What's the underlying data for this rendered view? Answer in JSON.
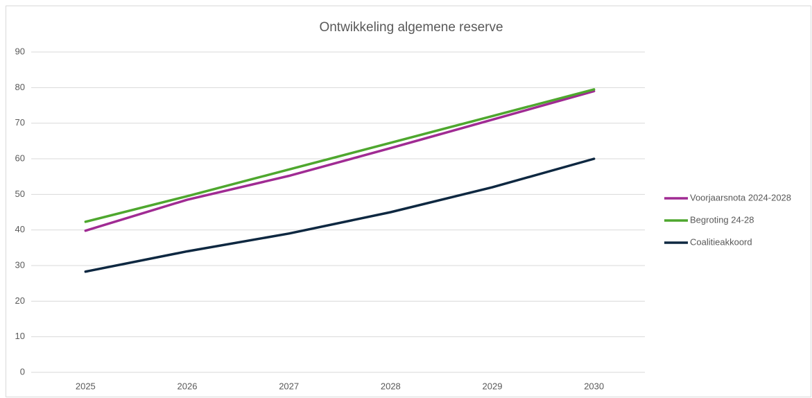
{
  "chart_data": {
    "type": "line",
    "title": "Ontwikkeling algemene reserve",
    "categories": [
      "2025",
      "2026",
      "2027",
      "2028",
      "2029",
      "2030"
    ],
    "series": [
      {
        "name": "Voorjaarsnota 2024-2028",
        "color": "#a02b93",
        "values": [
          39.8,
          48.5,
          55.2,
          63,
          71,
          79
        ]
      },
      {
        "name": "Begroting 24-28",
        "color": "#4ea72e",
        "values": [
          42.3,
          49.5,
          57,
          64.5,
          72,
          79.5
        ]
      },
      {
        "name": "Coalitieakkoord",
        "color": "#0e2841",
        "values": [
          28.3,
          34,
          39,
          45,
          52,
          60
        ]
      }
    ],
    "ylim": [
      0,
      90
    ],
    "yticks": [
      0,
      10,
      20,
      30,
      40,
      50,
      60,
      70,
      80,
      90
    ],
    "grid": true,
    "legend": "right"
  }
}
